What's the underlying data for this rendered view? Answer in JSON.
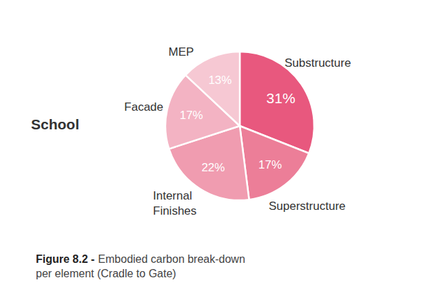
{
  "chart_data": {
    "type": "pie",
    "title": "School",
    "categories": [
      "Substructure",
      "Superstructure",
      "Internal Finishes",
      "Facade",
      "MEP"
    ],
    "values": [
      31,
      17,
      22,
      17,
      13
    ],
    "value_labels": [
      "31%",
      "17%",
      "22%",
      "17%",
      "13%"
    ],
    "colors": [
      "#e8587e",
      "#ec7e98",
      "#f09cb0",
      "#f3b3c3",
      "#f6c8d3"
    ],
    "data_labels": true,
    "annotations": [
      "Figure 8.2 -",
      "Embodied carbon break-down",
      "per element (Cradle to Gate)"
    ]
  }
}
